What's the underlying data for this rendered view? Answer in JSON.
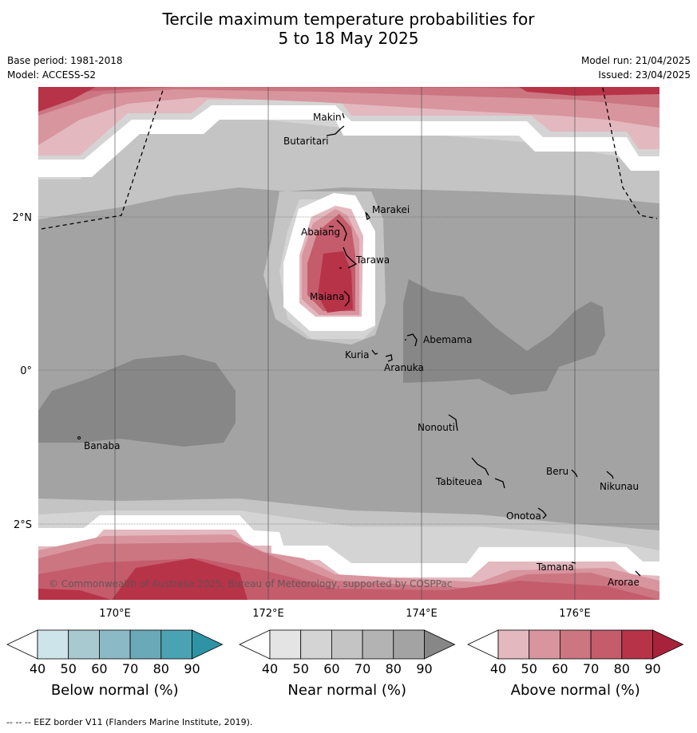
{
  "title_line1": "Tercile maximum temperature probabilities for",
  "title_line2": "5 to 18 May 2025",
  "base_period": "Base period: 1981-2018",
  "model": "Model: ACCESS-S2",
  "model_run": "Model run: 21/04/2025",
  "issued": "Issued: 23/04/2025",
  "copyright": "© Commonwealth of Australia 2025, Bureau of Meteorology, supported by COSPPac",
  "footer_note": "--  --  -- EEZ border V11 (Flanders Marine Institute, 2019).",
  "axes": {
    "x_ticks": [
      "170°E",
      "172°E",
      "174°E",
      "176°E"
    ],
    "y_ticks": [
      "2°N",
      "0°",
      "2°S"
    ]
  },
  "places": [
    "Makin",
    "Butaritari",
    "Marakei",
    "Abaiang",
    "Tarawa",
    "Maiana",
    "Abemama",
    "Kuria",
    "Aranuka",
    "Nonouti",
    "Banaba",
    "Tabiteuea",
    "Beru",
    "Nikunau",
    "Onotoa",
    "Tamana",
    "Arorae"
  ],
  "colorbars": [
    {
      "label": "Below normal (%)",
      "ticks": [
        "40",
        "50",
        "60",
        "70",
        "80",
        "90"
      ],
      "colors": [
        "#ffffff",
        "#cde4ea",
        "#a9c9d1",
        "#8bb9c5",
        "#6aa9b8",
        "#4aa3b3",
        "#2f93a6"
      ]
    },
    {
      "label": "Near normal (%)",
      "ticks": [
        "40",
        "50",
        "60",
        "70",
        "80",
        "90"
      ],
      "colors": [
        "#ffffff",
        "#e4e4e4",
        "#d4d4d4",
        "#c4c4c4",
        "#b3b3b3",
        "#a3a3a3",
        "#878787"
      ]
    },
    {
      "label": "Above normal (%)",
      "ticks": [
        "40",
        "50",
        "60",
        "70",
        "80",
        "90"
      ],
      "colors": [
        "#ffffff",
        "#e3b8bf",
        "#d8959e",
        "#cc7682",
        "#c45c6c",
        "#b73348",
        "#a8233a"
      ]
    }
  ]
}
